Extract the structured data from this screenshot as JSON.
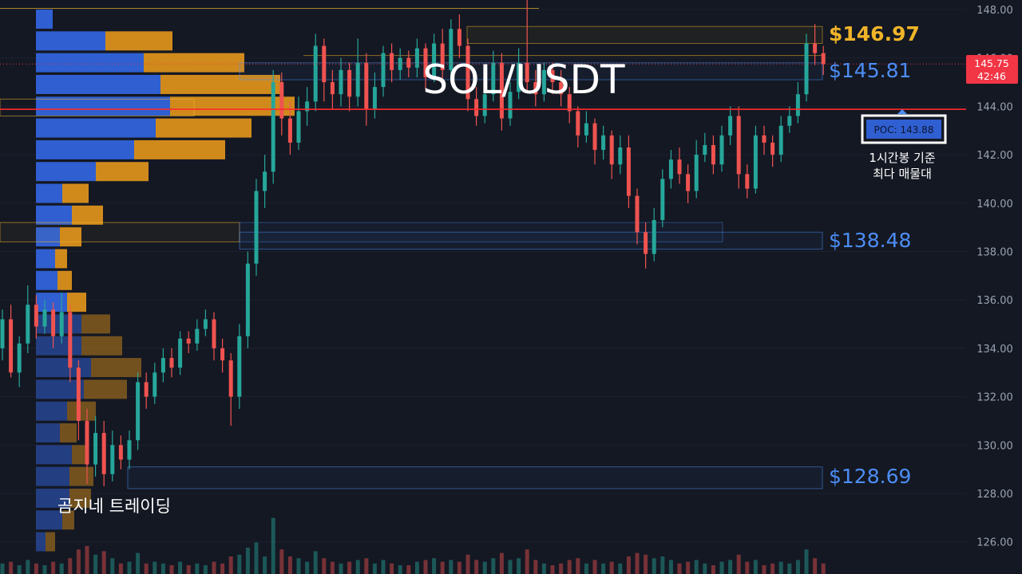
{
  "chart_data": {
    "type": "candlestick",
    "title": "SOL/USDT",
    "watermark": "곰지네 트레이딩",
    "ylim": [
      125.0,
      148.3
    ],
    "y_ticks": [
      "126.00",
      "128.00",
      "130.00",
      "132.00",
      "134.00",
      "136.00",
      "138.00",
      "140.00",
      "142.00",
      "144.00",
      "146.00",
      "148.00"
    ],
    "current_price": {
      "value": 145.75,
      "label": "145.75",
      "countdown": "42:46"
    },
    "poc": {
      "value": 143.88,
      "label": "POC: 143.88",
      "note_line1": "1시간봉 기준",
      "note_line2": "최다 매물대"
    },
    "levels": [
      {
        "name": "level-146-97",
        "label": "$146.97",
        "value": 146.97,
        "low": 146.6,
        "high": 147.3,
        "color": "#f0b429"
      },
      {
        "name": "level-145-81",
        "label": "$145.81",
        "value": 145.81,
        "low": 145.1,
        "high": 145.8,
        "color": "#4c8df5"
      },
      {
        "name": "level-138-48",
        "label": "$138.48",
        "value": 138.48,
        "low": 138.1,
        "high": 138.8,
        "color": "#4c8df5"
      },
      {
        "name": "level-128-69",
        "label": "$128.69",
        "value": 128.69,
        "low": 128.2,
        "high": 129.1,
        "color": "#4c8df5"
      }
    ],
    "volume_profile": [
      [
        148.0,
        7,
        0
      ],
      [
        147.1,
        29,
        28
      ],
      [
        146.2,
        45,
        42
      ],
      [
        145.3,
        52,
        50
      ],
      [
        144.4,
        56,
        52
      ],
      [
        143.5,
        50,
        40
      ],
      [
        142.6,
        41,
        38
      ],
      [
        141.7,
        25,
        22
      ],
      [
        140.8,
        11,
        11
      ],
      [
        139.9,
        15,
        13
      ],
      [
        139.0,
        10,
        9
      ],
      [
        138.1,
        8,
        5
      ],
      [
        137.2,
        9,
        6
      ],
      [
        136.3,
        13,
        8
      ],
      [
        135.4,
        19,
        12
      ],
      [
        134.5,
        19,
        17
      ],
      [
        133.6,
        23,
        21
      ],
      [
        132.7,
        20,
        18
      ],
      [
        131.8,
        13,
        12
      ],
      [
        130.9,
        10,
        7
      ],
      [
        130.0,
        15,
        6
      ],
      [
        129.1,
        14,
        10
      ],
      [
        128.2,
        14,
        9
      ],
      [
        127.3,
        11,
        5
      ],
      [
        126.4,
        4,
        4
      ]
    ],
    "candles": [
      [
        0,
        134.0,
        135.2,
        133.5,
        135.6,
        "u",
        6
      ],
      [
        1,
        135.2,
        133.0,
        132.8,
        135.8,
        "d",
        7
      ],
      [
        2,
        133.0,
        134.2,
        132.4,
        134.5,
        "u",
        5
      ],
      [
        3,
        134.2,
        135.8,
        133.8,
        136.6,
        "u",
        8
      ],
      [
        4,
        135.8,
        134.9,
        134.4,
        136.2,
        "d",
        6
      ],
      [
        5,
        134.9,
        135.6,
        134.6,
        136.0,
        "u",
        5
      ],
      [
        6,
        135.6,
        134.5,
        134.0,
        135.9,
        "d",
        7
      ],
      [
        7,
        134.5,
        135.5,
        134.2,
        136.3,
        "u",
        6
      ],
      [
        8,
        135.5,
        133.2,
        132.6,
        135.8,
        "d",
        9
      ],
      [
        9,
        133.2,
        131.0,
        130.2,
        133.5,
        "d",
        14
      ],
      [
        10,
        131.0,
        129.2,
        128.4,
        131.5,
        "d",
        16
      ],
      [
        11,
        129.2,
        130.5,
        128.7,
        131.2,
        "u",
        11
      ],
      [
        12,
        130.5,
        128.8,
        128.3,
        131.0,
        "d",
        13
      ],
      [
        13,
        128.8,
        130.0,
        128.5,
        130.6,
        "u",
        9
      ],
      [
        14,
        130.0,
        129.4,
        129.0,
        130.4,
        "d",
        6
      ],
      [
        15,
        129.4,
        130.2,
        129.0,
        130.6,
        "u",
        7
      ],
      [
        16,
        130.2,
        132.6,
        129.8,
        133.0,
        "u",
        12
      ],
      [
        17,
        132.6,
        132.0,
        131.5,
        133.0,
        "d",
        6
      ],
      [
        18,
        132.0,
        133.0,
        131.7,
        133.4,
        "u",
        7
      ],
      [
        19,
        133.0,
        133.6,
        132.6,
        134.0,
        "u",
        6
      ],
      [
        20,
        133.6,
        133.2,
        132.8,
        134.0,
        "d",
        5
      ],
      [
        21,
        133.2,
        134.4,
        132.9,
        134.7,
        "u",
        7
      ],
      [
        22,
        134.4,
        134.2,
        133.8,
        134.7,
        "d",
        5
      ],
      [
        23,
        134.2,
        134.8,
        133.9,
        135.2,
        "u",
        6
      ],
      [
        24,
        134.8,
        135.2,
        134.5,
        135.6,
        "u",
        5
      ],
      [
        25,
        135.2,
        134.0,
        133.5,
        135.5,
        "d",
        7
      ],
      [
        26,
        134.0,
        133.5,
        133.0,
        134.4,
        "d",
        6
      ],
      [
        27,
        133.5,
        132.0,
        130.8,
        133.8,
        "d",
        10
      ],
      [
        28,
        132.0,
        134.5,
        131.5,
        135.0,
        "u",
        11
      ],
      [
        29,
        134.5,
        137.5,
        134.0,
        138.0,
        "u",
        15
      ],
      [
        30,
        137.5,
        140.5,
        137.0,
        141.0,
        "u",
        18
      ],
      [
        31,
        140.5,
        141.3,
        139.8,
        142.0,
        "u",
        10
      ],
      [
        32,
        141.3,
        145.0,
        140.8,
        145.5,
        "u",
        32
      ],
      [
        33,
        145.0,
        143.5,
        142.8,
        145.4,
        "d",
        14
      ],
      [
        34,
        143.5,
        142.5,
        142.0,
        144.2,
        "d",
        10
      ],
      [
        35,
        142.5,
        143.8,
        142.2,
        144.4,
        "u",
        9
      ],
      [
        36,
        143.8,
        144.2,
        143.2,
        144.8,
        "u",
        7
      ],
      [
        37,
        144.2,
        146.5,
        143.8,
        147.0,
        "u",
        13
      ],
      [
        38,
        146.5,
        145.0,
        144.2,
        146.8,
        "d",
        9
      ],
      [
        39,
        145.0,
        144.5,
        143.9,
        145.5,
        "d",
        7
      ],
      [
        40,
        144.5,
        145.5,
        144.0,
        146.0,
        "u",
        6
      ],
      [
        41,
        145.5,
        144.4,
        143.8,
        145.8,
        "d",
        7
      ],
      [
        42,
        144.4,
        145.8,
        144.0,
        146.8,
        "u",
        8
      ],
      [
        43,
        145.8,
        143.9,
        143.2,
        146.2,
        "d",
        9
      ],
      [
        44,
        143.9,
        144.8,
        143.5,
        145.4,
        "u",
        6
      ],
      [
        45,
        144.8,
        146.2,
        144.4,
        146.5,
        "u",
        8
      ],
      [
        46,
        146.2,
        145.5,
        145.0,
        146.6,
        "d",
        6
      ],
      [
        47,
        145.5,
        146.0,
        145.1,
        146.4,
        "u",
        5
      ],
      [
        48,
        146.0,
        145.6,
        145.2,
        146.3,
        "d",
        5
      ],
      [
        49,
        145.6,
        146.4,
        145.2,
        146.8,
        "u",
        7
      ],
      [
        50,
        146.4,
        145.2,
        144.7,
        146.6,
        "d",
        8
      ],
      [
        51,
        145.2,
        146.6,
        145.0,
        147.0,
        "u",
        9
      ],
      [
        52,
        146.6,
        145.5,
        145.1,
        147.2,
        "d",
        7
      ],
      [
        53,
        145.5,
        147.2,
        145.3,
        147.6,
        "u",
        8
      ],
      [
        54,
        147.2,
        146.5,
        146.0,
        147.8,
        "d",
        7
      ],
      [
        55,
        146.5,
        144.3,
        143.8,
        146.8,
        "d",
        11
      ],
      [
        56,
        144.3,
        143.6,
        143.2,
        144.8,
        "d",
        8
      ],
      [
        57,
        143.6,
        144.5,
        143.3,
        145.0,
        "u",
        7
      ],
      [
        58,
        144.5,
        145.8,
        144.2,
        146.3,
        "u",
        9
      ],
      [
        59,
        145.8,
        143.5,
        143.0,
        146.2,
        "d",
        12
      ],
      [
        60,
        143.5,
        144.6,
        143.2,
        145.0,
        "u",
        8
      ],
      [
        61,
        144.6,
        145.8,
        144.3,
        146.4,
        "u",
        9
      ],
      [
        62,
        145.8,
        145.0,
        144.6,
        148.6,
        "d",
        14
      ],
      [
        63,
        145.0,
        144.5,
        144.0,
        145.5,
        "d",
        8
      ],
      [
        64,
        144.5,
        145.5,
        144.2,
        145.8,
        "u",
        6
      ],
      [
        65,
        145.5,
        145.0,
        144.5,
        145.8,
        "d",
        5
      ],
      [
        66,
        145.0,
        144.5,
        144.0,
        145.5,
        "d",
        6
      ],
      [
        67,
        144.5,
        143.8,
        143.3,
        144.8,
        "d",
        8
      ],
      [
        68,
        143.8,
        142.8,
        142.3,
        144.0,
        "d",
        9
      ],
      [
        69,
        142.8,
        143.3,
        142.5,
        143.8,
        "u",
        6
      ],
      [
        70,
        143.3,
        142.2,
        141.6,
        143.5,
        "d",
        8
      ],
      [
        71,
        142.2,
        142.8,
        141.8,
        143.2,
        "u",
        6
      ],
      [
        72,
        142.8,
        141.6,
        141.0,
        143.0,
        "d",
        7
      ],
      [
        73,
        141.6,
        142.3,
        141.2,
        142.8,
        "u",
        6
      ],
      [
        74,
        142.3,
        140.3,
        139.8,
        142.8,
        "d",
        10
      ],
      [
        75,
        140.3,
        138.8,
        138.3,
        140.6,
        "d",
        12
      ],
      [
        76,
        138.8,
        137.9,
        137.3,
        139.2,
        "d",
        11
      ],
      [
        77,
        137.9,
        139.3,
        137.6,
        139.8,
        "u",
        9
      ],
      [
        78,
        139.3,
        141.0,
        139.0,
        141.4,
        "u",
        10
      ],
      [
        79,
        141.0,
        141.8,
        140.6,
        142.2,
        "u",
        8
      ],
      [
        80,
        141.8,
        141.2,
        140.8,
        142.3,
        "d",
        6
      ],
      [
        81,
        141.2,
        140.5,
        140.0,
        141.6,
        "d",
        7
      ],
      [
        82,
        140.5,
        142.0,
        140.2,
        142.6,
        "u",
        8
      ],
      [
        83,
        142.0,
        142.4,
        141.7,
        142.9,
        "u",
        6
      ],
      [
        84,
        142.4,
        141.6,
        141.2,
        142.8,
        "d",
        5
      ],
      [
        85,
        141.6,
        142.8,
        141.3,
        143.2,
        "u",
        7
      ],
      [
        86,
        142.8,
        143.6,
        142.4,
        144.0,
        "u",
        8
      ],
      [
        87,
        143.6,
        141.2,
        140.6,
        144.0,
        "d",
        11
      ],
      [
        88,
        141.2,
        140.6,
        140.2,
        141.6,
        "d",
        7
      ],
      [
        89,
        140.6,
        142.8,
        140.4,
        143.2,
        "u",
        8
      ],
      [
        90,
        142.8,
        142.5,
        142.0,
        143.2,
        "d",
        5
      ],
      [
        91,
        142.5,
        142.0,
        141.5,
        142.8,
        "d",
        6
      ],
      [
        92,
        142.0,
        143.2,
        141.7,
        143.6,
        "u",
        7
      ],
      [
        93,
        143.2,
        143.6,
        142.9,
        144.0,
        "u",
        6
      ],
      [
        94,
        143.6,
        144.5,
        143.3,
        145.0,
        "u",
        8
      ],
      [
        95,
        144.5,
        146.6,
        144.2,
        147.0,
        "u",
        14
      ],
      [
        96,
        146.6,
        146.2,
        145.7,
        147.4,
        "d",
        9
      ],
      [
        97,
        146.2,
        145.75,
        145.3,
        146.5,
        "d",
        6
      ]
    ],
    "colors": {
      "background": "#141823",
      "up": "#26a69a",
      "down": "#ef5350",
      "profile_up": "#2f5fd0",
      "profile_down": "#d08a1c",
      "poc_line": "#ff2b2b",
      "axis_text": "#9aa3b2",
      "price_tag": "#f23645"
    }
  }
}
